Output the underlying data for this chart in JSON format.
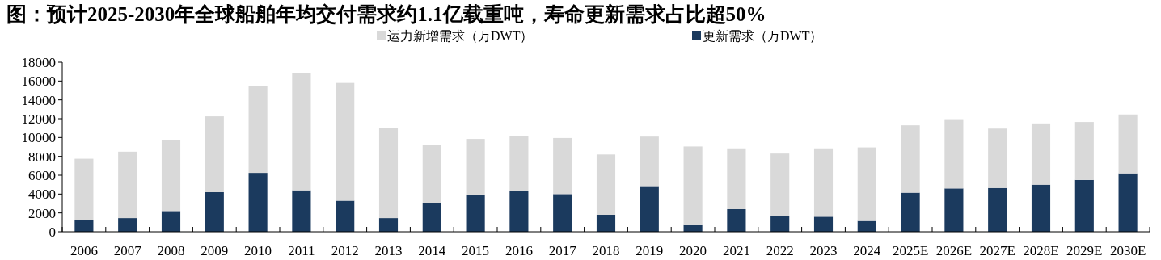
{
  "chart_data": {
    "type": "bar",
    "title": "图：预计2025-2030年全球船舶年均交付需求约1.1亿载重吨，寿命更新需求占比超50%",
    "categories": [
      "2006",
      "2007",
      "2008",
      "2009",
      "2010",
      "2011",
      "2012",
      "2013",
      "2014",
      "2015",
      "2016",
      "2017",
      "2018",
      "2019",
      "2020",
      "2021",
      "2022",
      "2023",
      "2024",
      "2025E",
      "2026E",
      "2027E",
      "2028E",
      "2029E",
      "2030E"
    ],
    "stacked": true,
    "series": [
      {
        "name": "更新需求（万DWT）",
        "color": "#1b3a5e",
        "values": [
          1250,
          1450,
          2200,
          4200,
          6250,
          4400,
          3300,
          1450,
          3000,
          3950,
          4300,
          4000,
          1800,
          4850,
          700,
          2400,
          1700,
          1600,
          1150,
          4150,
          4600,
          4650,
          5000,
          5500,
          6200
        ]
      },
      {
        "name": "运力新增需求（万DWT）",
        "color": "#d9d9d9",
        "values": [
          6500,
          7050,
          7550,
          8050,
          9200,
          12450,
          12500,
          9600,
          6250,
          5900,
          5900,
          5950,
          6400,
          5250,
          8350,
          6450,
          6600,
          7250,
          7800,
          7150,
          7350,
          6300,
          6500,
          6150,
          6250
        ]
      }
    ],
    "ylim": [
      0,
      18000
    ],
    "yticks": [
      0,
      2000,
      4000,
      6000,
      8000,
      10000,
      12000,
      14000,
      16000,
      18000
    ],
    "legend": "top"
  }
}
